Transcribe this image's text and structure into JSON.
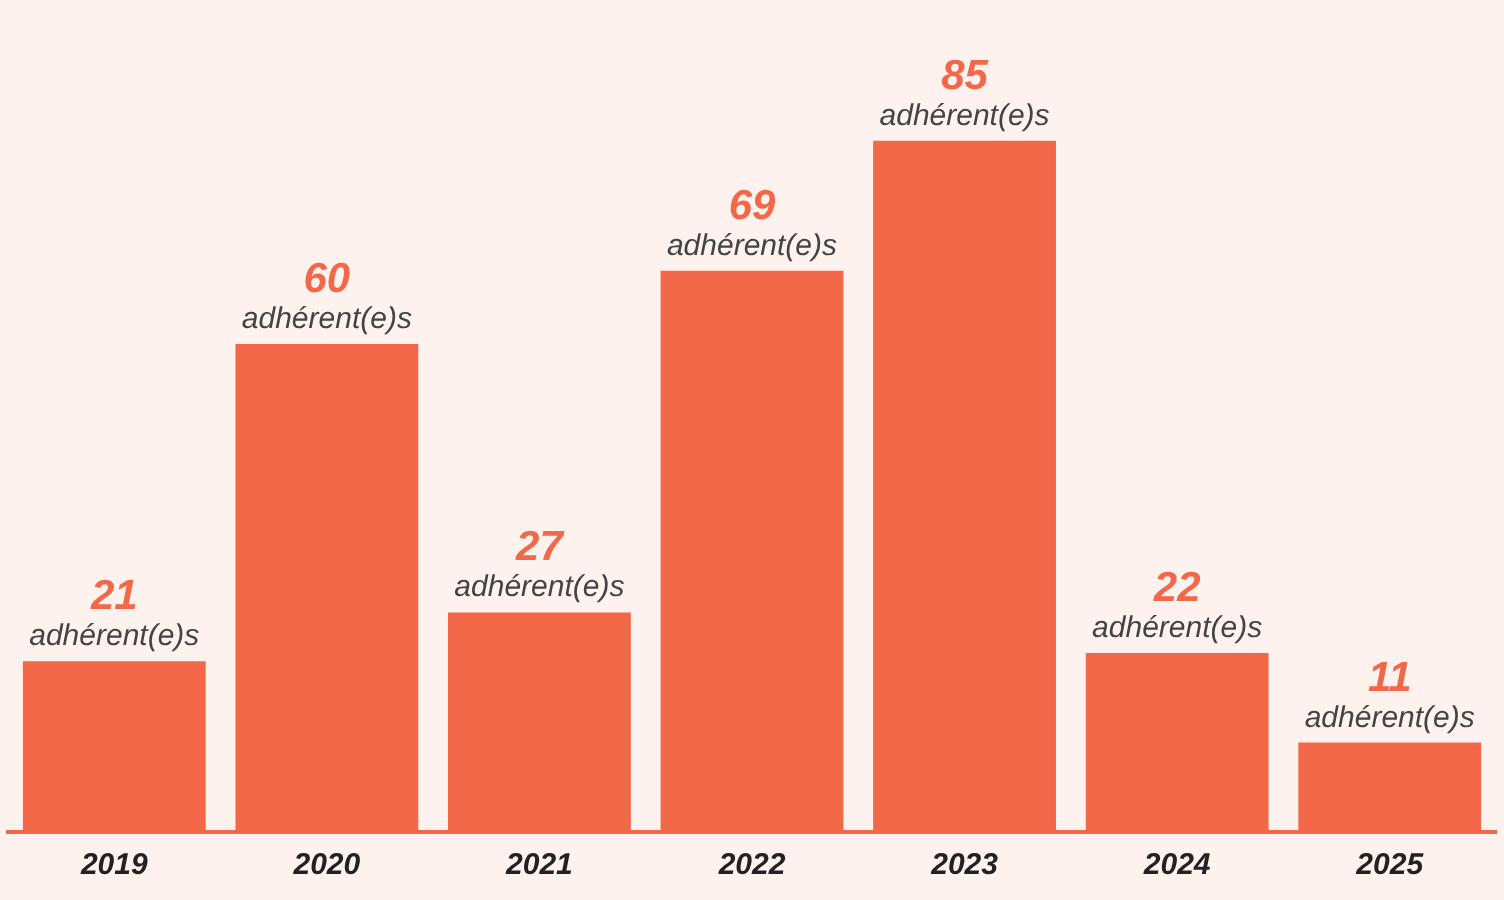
{
  "chart_data": {
    "type": "bar",
    "categories": [
      "2019",
      "2020",
      "2021",
      "2022",
      "2023",
      "2024",
      "2025"
    ],
    "values": [
      21,
      60,
      27,
      69,
      85,
      22,
      11
    ],
    "color": "#f26849",
    "value_labels": [
      "21 adhérent(e)s",
      "60 adhérent(e)s",
      "27 adhérent(e)s",
      "69 adhérent(e)s",
      "85 adhérent(e)s",
      "22 adhérent(e)s",
      "11 adhérent(e)s"
    ],
    "grid": false,
    "legend": false
  }
}
